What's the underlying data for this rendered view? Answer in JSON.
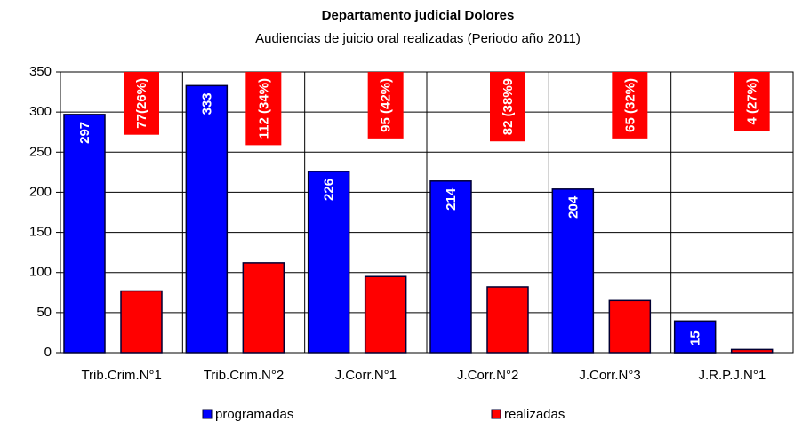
{
  "chart_data": {
    "type": "bar",
    "title": "Departamento judicial Dolores",
    "subtitle": "Audiencias de juicio oral realizadas (Periodo año 2011)",
    "categories": [
      "Trib.Crim.N°1",
      "Trib.Crim.N°2",
      "J.Corr.N°1",
      "J.Corr.N°2",
      "J.Corr.N°3",
      "J.R.P.J.N°1"
    ],
    "series": [
      {
        "name": "programadas",
        "color": "#0000ff",
        "values": [
          297,
          333,
          226,
          214,
          204,
          15
        ]
      },
      {
        "name": "realizadas",
        "color": "#ff0000",
        "values": [
          77,
          112,
          95,
          82,
          65,
          4
        ],
        "value_labels": [
          "77(26%)",
          "112 (34%)",
          "95 (42%)",
          "82 (38%9",
          "65 (32%)",
          "4 (27%)"
        ]
      }
    ],
    "ylim": [
      0,
      350
    ],
    "yticks": [
      0,
      50,
      100,
      150,
      200,
      250,
      300,
      350
    ],
    "grid": true,
    "legend": "bottom"
  }
}
